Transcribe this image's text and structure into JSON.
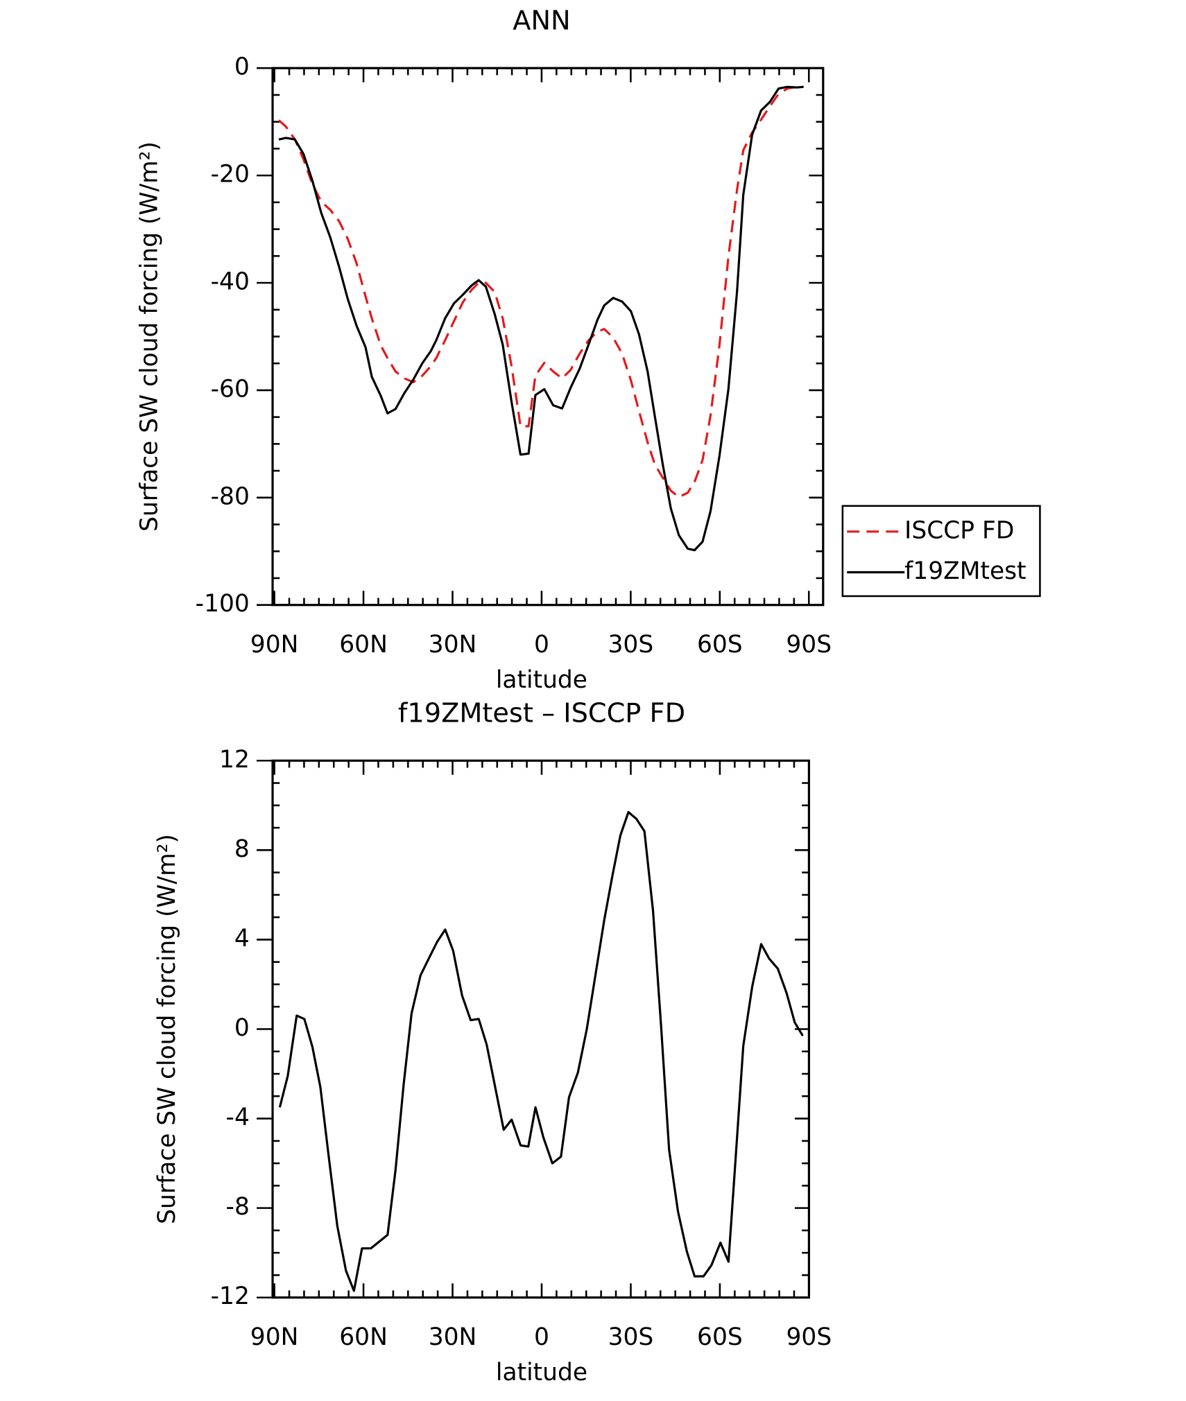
{
  "chart_data": [
    {
      "type": "line",
      "title": "ANN",
      "xlabel": "latitude",
      "ylabel": "Surface SW cloud forcing (W/m²)",
      "xlim": [
        90.6,
        -94.8
      ],
      "ylim": [
        -100,
        0
      ],
      "xticks": [
        {
          "value": 90,
          "label": "90N"
        },
        {
          "value": 60,
          "label": "60N"
        },
        {
          "value": 30,
          "label": "30N"
        },
        0,
        {
          "value": -30,
          "label": "30S"
        },
        {
          "value": -60,
          "label": "60S"
        },
        {
          "value": -90,
          "label": "90S"
        }
      ],
      "yticks": [
        0,
        -20,
        -40,
        -60,
        -80,
        -100
      ],
      "legend": "right",
      "x": [
        88.5,
        86.1,
        83.1,
        80.2,
        77.2,
        74.2,
        71.2,
        68.2,
        65.3,
        62.3,
        59.3,
        57.2,
        54.2,
        51.9,
        49.2,
        46.2,
        43.2,
        40.2,
        37.3,
        35.5,
        32.5,
        29.5,
        26.5,
        23.6,
        21.2,
        18.8,
        15.8,
        13.1,
        10.1,
        7.1,
        4.4,
        2.1,
        -0.9,
        -3.9,
        -6.9,
        -9.8,
        -12.8,
        -15.8,
        -18.8,
        -21.1,
        -24.1,
        -27.1,
        -30.1,
        -32.8,
        -35.7,
        -38.1,
        -40.8,
        -43.5,
        -46.2,
        -49.2,
        -51.5,
        -54.2,
        -56.9,
        -59.9,
        -62.9,
        -65.8,
        -67.9,
        -70.9,
        -73.9,
        -76.9,
        -79.8,
        -82.8,
        -85.8,
        -88.2
      ],
      "series": [
        {
          "name": "ISCCP FD",
          "color": "#e41a1c",
          "style": "dashed",
          "values": [
            -9.7,
            -10.9,
            -13.3,
            -17,
            -21.6,
            -24.9,
            -26.4,
            -28.5,
            -31.8,
            -36.4,
            -42.5,
            -46.6,
            -51.6,
            -54,
            -56.5,
            -57.8,
            -58.5,
            -57.3,
            -55.5,
            -54,
            -50.7,
            -47.1,
            -43.6,
            -41.3,
            -40,
            -40,
            -41.7,
            -46.6,
            -55.6,
            -66.7,
            -66.7,
            -57.3,
            -54.9,
            -56.5,
            -57.8,
            -56.2,
            -53.2,
            -50.7,
            -49.1,
            -48.6,
            -50.2,
            -53.2,
            -58.2,
            -63.9,
            -69.7,
            -73.8,
            -76.3,
            -78.7,
            -79.9,
            -79.1,
            -77.1,
            -73,
            -64.7,
            -51.6,
            -35.1,
            -22.7,
            -15.3,
            -12,
            -9.6,
            -7.1,
            -4.8,
            -3.8,
            -3.5,
            -3.5
          ]
        },
        {
          "name": "f19ZMtest",
          "color": "#000000",
          "style": "solid",
          "values": [
            -13.3,
            -13,
            -13.3,
            -16,
            -21,
            -27,
            -31.5,
            -37,
            -43,
            -48,
            -52,
            -57.5,
            -61,
            -64.3,
            -63.5,
            -60.5,
            -58,
            -55,
            -52.7,
            -50.7,
            -46.6,
            -43.8,
            -42.2,
            -40.5,
            -39.5,
            -40.7,
            -45.8,
            -51.5,
            -62.3,
            -72,
            -71.8,
            -60.9,
            -59.8,
            -62.8,
            -63.4,
            -59.5,
            -56,
            -51.5,
            -46.9,
            -44.2,
            -42.8,
            -43.5,
            -45.3,
            -49.6,
            -56.5,
            -64.8,
            -73.8,
            -82,
            -87,
            -89.5,
            -89.8,
            -88.2,
            -82.5,
            -72.2,
            -59.8,
            -41.7,
            -23.6,
            -12.4,
            -7.9,
            -6.3,
            -3.8,
            -3.5,
            -3.6,
            -3.5
          ]
        }
      ]
    },
    {
      "type": "line",
      "title": "f19ZMtest – ISCCP FD",
      "xlabel": "latitude",
      "ylabel": "Surface SW cloud forcing (W/m²)",
      "xlim": [
        90.6,
        -90
      ],
      "ylim": [
        -12,
        12
      ],
      "xticks": [
        {
          "value": 90,
          "label": "90N"
        },
        {
          "value": 60,
          "label": "60N"
        },
        {
          "value": 30,
          "label": "30N"
        },
        0,
        {
          "value": -30,
          "label": "30S"
        },
        {
          "value": -60,
          "label": "60S"
        },
        {
          "value": -90,
          "label": "90S"
        }
      ],
      "yticks": [
        12,
        8,
        4,
        0,
        -4,
        -8,
        -12
      ],
      "x": [
        88.2,
        85.5,
        82.5,
        79.9,
        77.2,
        74.5,
        71.8,
        68.8,
        65.9,
        63.2,
        60.5,
        57.5,
        51.9,
        49.2,
        46.5,
        43.8,
        40.8,
        38.2,
        35.2,
        32.5,
        29.8,
        26.8,
        23.9,
        21.2,
        18.5,
        15.8,
        12.8,
        10.1,
        7.1,
        4.5,
        2.1,
        -0.6,
        -3.6,
        -6.5,
        -9.2,
        -12.2,
        -15.2,
        -18.2,
        -21.1,
        -23.8,
        -26.5,
        -29.2,
        -31.9,
        -34.6,
        -37.5,
        -40.2,
        -42.9,
        -45.9,
        -48.9,
        -51.5,
        -54.5,
        -57.2,
        -60.2,
        -62.9,
        -65.5,
        -67.9,
        -70.9,
        -73.9,
        -76.6,
        -79.5,
        -82.5,
        -85.2,
        -87.9
      ],
      "series": [
        {
          "color": "#000000",
          "style": "solid",
          "values": [
            -3.5,
            -2.1,
            0.6,
            0.45,
            -0.8,
            -2.6,
            -5.6,
            -8.8,
            -10.8,
            -11.7,
            -9.8,
            -9.8,
            -9.2,
            -6.3,
            -2.5,
            0.7,
            2.4,
            3.1,
            3.9,
            4.45,
            3.5,
            1.5,
            0.4,
            0.45,
            -0.7,
            -2.5,
            -4.5,
            -4.05,
            -5.2,
            -5.25,
            -3.5,
            -4.85,
            -6,
            -5.7,
            -3.05,
            -1.95,
            0,
            2.5,
            4.9,
            6.85,
            8.65,
            9.7,
            9.4,
            8.85,
            5.3,
            0.15,
            -5.4,
            -8.15,
            -9.95,
            -11.05,
            -11.05,
            -10.55,
            -9.55,
            -10.4,
            -5.4,
            -0.75,
            1.9,
            3.8,
            3.15,
            2.7,
            1.6,
            0.3,
            -0.3
          ]
        }
      ]
    }
  ]
}
